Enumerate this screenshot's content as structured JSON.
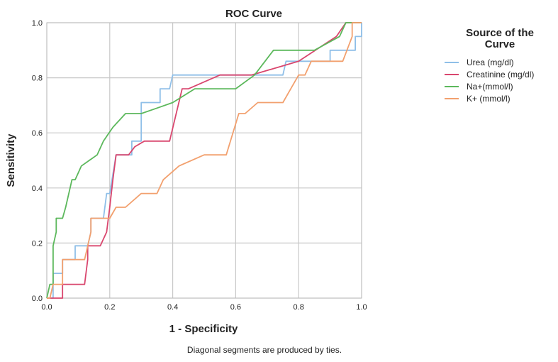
{
  "chart_data": {
    "type": "line",
    "title": "ROC Curve",
    "xlabel": "1 - Specificity",
    "ylabel": "Sensitivity",
    "xlim": [
      0,
      1
    ],
    "ylim": [
      0,
      1
    ],
    "xticks": [
      "0.0",
      "0.2",
      "0.4",
      "0.6",
      "0.8",
      "1.0"
    ],
    "yticks": [
      "0.0",
      "0.2",
      "0.4",
      "0.6",
      "0.8",
      "1.0"
    ],
    "grid": true,
    "legend_title": "Source of the Curve",
    "legend_position": "top-right",
    "footnote": "Diagonal segments are produced by ties.",
    "series": [
      {
        "name": "Urea (mg/dl)",
        "color": "#8fbfe8",
        "points": [
          [
            0,
            0
          ],
          [
            0.02,
            0
          ],
          [
            0.02,
            0.09
          ],
          [
            0.05,
            0.09
          ],
          [
            0.05,
            0.14
          ],
          [
            0.09,
            0.14
          ],
          [
            0.09,
            0.19
          ],
          [
            0.13,
            0.19
          ],
          [
            0.14,
            0.24
          ],
          [
            0.14,
            0.29
          ],
          [
            0.18,
            0.29
          ],
          [
            0.19,
            0.38
          ],
          [
            0.2,
            0.38
          ],
          [
            0.22,
            0.52
          ],
          [
            0.27,
            0.52
          ],
          [
            0.27,
            0.57
          ],
          [
            0.3,
            0.57
          ],
          [
            0.3,
            0.71
          ],
          [
            0.36,
            0.71
          ],
          [
            0.36,
            0.76
          ],
          [
            0.39,
            0.76
          ],
          [
            0.4,
            0.81
          ],
          [
            0.75,
            0.81
          ],
          [
            0.76,
            0.86
          ],
          [
            0.9,
            0.86
          ],
          [
            0.9,
            0.9
          ],
          [
            0.98,
            0.9
          ],
          [
            0.98,
            0.95
          ],
          [
            1,
            0.95
          ],
          [
            1,
            1
          ]
        ]
      },
      {
        "name": "Creatinine (mg/dl)",
        "color": "#d9466e",
        "points": [
          [
            0,
            0
          ],
          [
            0.05,
            0
          ],
          [
            0.05,
            0.05
          ],
          [
            0.12,
            0.05
          ],
          [
            0.13,
            0.14
          ],
          [
            0.13,
            0.19
          ],
          [
            0.17,
            0.19
          ],
          [
            0.19,
            0.24
          ],
          [
            0.2,
            0.33
          ],
          [
            0.21,
            0.43
          ],
          [
            0.22,
            0.52
          ],
          [
            0.26,
            0.52
          ],
          [
            0.28,
            0.55
          ],
          [
            0.31,
            0.57
          ],
          [
            0.39,
            0.57
          ],
          [
            0.43,
            0.76
          ],
          [
            0.45,
            0.76
          ],
          [
            0.55,
            0.81
          ],
          [
            0.65,
            0.81
          ],
          [
            0.8,
            0.86
          ],
          [
            0.92,
            0.95
          ],
          [
            0.95,
            1
          ],
          [
            1,
            1
          ]
        ]
      },
      {
        "name": "Na+(mmol/l)",
        "color": "#5cb85c",
        "points": [
          [
            0,
            0
          ],
          [
            0.01,
            0.05
          ],
          [
            0.02,
            0.05
          ],
          [
            0.02,
            0.19
          ],
          [
            0.03,
            0.24
          ],
          [
            0.03,
            0.29
          ],
          [
            0.05,
            0.29
          ],
          [
            0.06,
            0.33
          ],
          [
            0.08,
            0.43
          ],
          [
            0.09,
            0.43
          ],
          [
            0.11,
            0.48
          ],
          [
            0.16,
            0.52
          ],
          [
            0.18,
            0.57
          ],
          [
            0.21,
            0.62
          ],
          [
            0.25,
            0.67
          ],
          [
            0.3,
            0.67
          ],
          [
            0.35,
            0.69
          ],
          [
            0.4,
            0.71
          ],
          [
            0.47,
            0.76
          ],
          [
            0.6,
            0.76
          ],
          [
            0.66,
            0.81
          ],
          [
            0.72,
            0.9
          ],
          [
            0.85,
            0.9
          ],
          [
            0.93,
            0.95
          ],
          [
            0.95,
            1
          ],
          [
            1,
            1
          ]
        ]
      },
      {
        "name": "K+ (mmol/l)",
        "color": "#f2a06e",
        "points": [
          [
            0,
            0
          ],
          [
            0.01,
            0
          ],
          [
            0.02,
            0.05
          ],
          [
            0.05,
            0.05
          ],
          [
            0.05,
            0.14
          ],
          [
            0.12,
            0.14
          ],
          [
            0.14,
            0.24
          ],
          [
            0.14,
            0.29
          ],
          [
            0.2,
            0.29
          ],
          [
            0.22,
            0.33
          ],
          [
            0.25,
            0.33
          ],
          [
            0.3,
            0.38
          ],
          [
            0.35,
            0.38
          ],
          [
            0.37,
            0.43
          ],
          [
            0.42,
            0.48
          ],
          [
            0.5,
            0.52
          ],
          [
            0.57,
            0.52
          ],
          [
            0.61,
            0.67
          ],
          [
            0.63,
            0.67
          ],
          [
            0.67,
            0.71
          ],
          [
            0.75,
            0.71
          ],
          [
            0.8,
            0.81
          ],
          [
            0.82,
            0.81
          ],
          [
            0.84,
            0.86
          ],
          [
            0.94,
            0.86
          ],
          [
            0.97,
            0.95
          ],
          [
            0.97,
            1
          ],
          [
            1,
            1
          ]
        ]
      }
    ]
  }
}
